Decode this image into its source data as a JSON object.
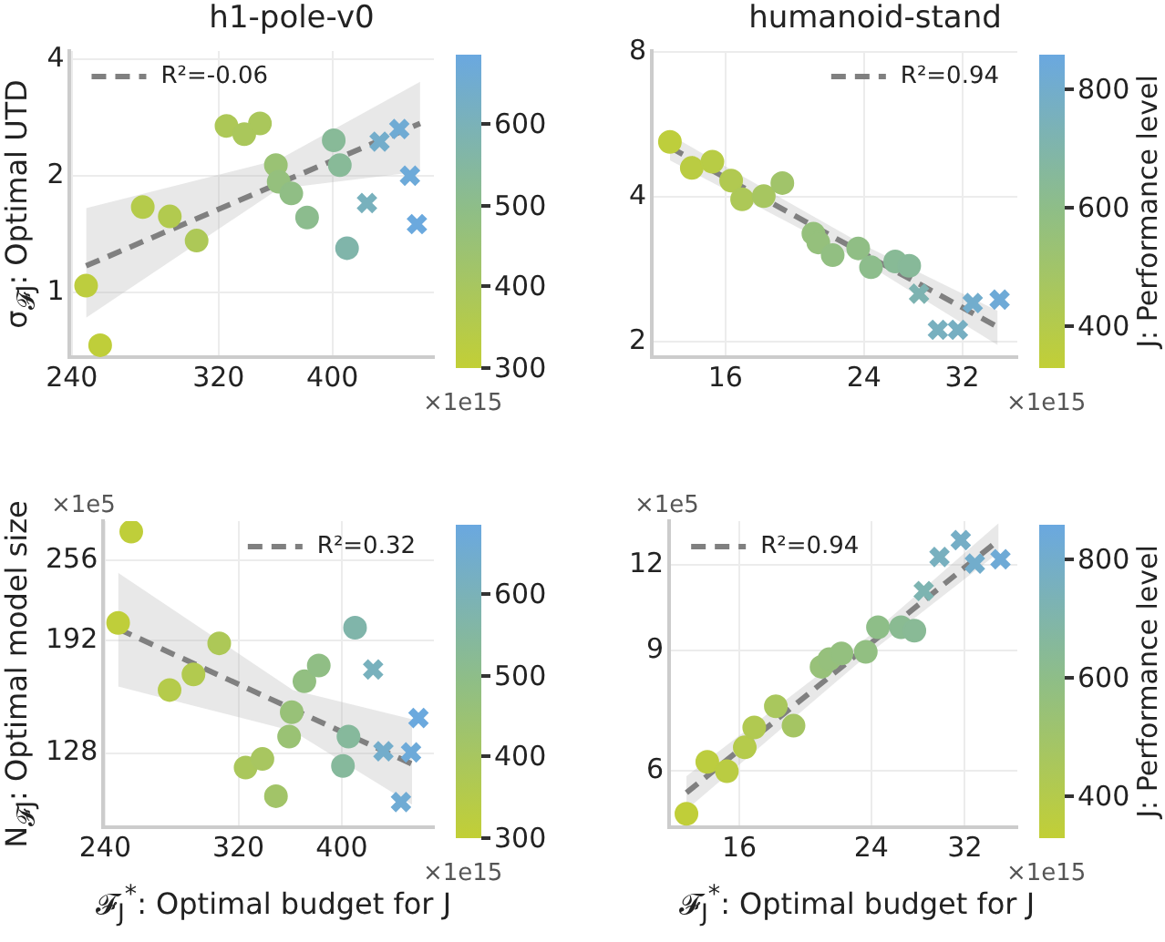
{
  "chart_data": [
    {
      "type": "scatter",
      "title": "h1-pole-v0",
      "ylabel": "σ$_{𝓕J}$: Optimal UTD",
      "xlim": [
        239,
        488
      ],
      "xticks": [
        240,
        320,
        400
      ],
      "ylim": [
        0.68,
        4.2
      ],
      "yticks": [
        1,
        2,
        4
      ],
      "log": "xy",
      "grid": true,
      "legend": "top left",
      "clim": [
        300,
        685
      ],
      "cticks": [
        300,
        400,
        500,
        600
      ],
      "annotations": [
        "×1e15"
      ],
      "series": [
        {
          "marker": "circle",
          "x": [
            246.8,
            253.7,
            275.8,
            290.8,
            306.5,
            325,
            336.5,
            347,
            358,
            360,
            369,
            380.6,
            401,
            405.8,
            411.6
          ],
          "values": [
            1.04,
            0.73,
            1.66,
            1.57,
            1.36,
            2.69,
            2.56,
            2.73,
            2.13,
            1.93,
            1.8,
            1.56,
            2.47,
            2.13,
            1.3
          ],
          "cvalues": [
            320,
            310,
            350,
            360,
            380,
            380,
            390,
            390,
            450,
            470,
            490,
            510,
            530,
            530,
            570
          ],
          "colors": [
            "#bdcd3e",
            "#bfce3a",
            "#b5cb4b",
            "#b2ca4f",
            "#adc857",
            "#adc857",
            "#aac75b",
            "#aac75b",
            "#9ac274",
            "#95c07d",
            "#90be85",
            "#8cbc8e",
            "#88ba98",
            "#88ba98",
            "#80b5aa"
          ]
        },
        {
          "marker": "cross",
          "x": [
            428,
            438.7,
            456,
            465.6,
            472
          ],
          "values": [
            1.7,
            2.45,
            2.64,
            2.0,
            1.5
          ],
          "cvalues": [
            610,
            640,
            660,
            670,
            680
          ],
          "colors": [
            "#78b1bd",
            "#73adcb",
            "#6fabd4",
            "#6daad9",
            "#6ba9de"
          ]
        },
        {
          "type": "line",
          "name": "R²=-0.06",
          "color": "#808080",
          "line_style": "dashed",
          "marker": "none",
          "x": [
            246.8,
            360,
            475
          ],
          "values": [
            1.17,
            1.91,
            2.73
          ],
          "lower": [
            0.86,
            1.85,
            2.05
          ],
          "upper": [
            1.65,
            2.2,
            3.5
          ]
        }
      ]
    },
    {
      "type": "scatter",
      "title": "humanoid-stand",
      "clabel": "J: Performance level",
      "xlim": [
        12.9,
        37.6
      ],
      "xticks": [
        16,
        24,
        32
      ],
      "ylim": [
        1.86,
        8.05
      ],
      "yticks": [
        2,
        4,
        8
      ],
      "log": "xy",
      "grid": true,
      "legend": "top right",
      "clim": [
        330,
        857
      ],
      "cticks": [
        400,
        600,
        800
      ],
      "annotations": [
        "×1e15"
      ],
      "series": [
        {
          "marker": "circle",
          "x": [
            13.6,
            14.5,
            15.4,
            16.27,
            16.8,
            17.9,
            18.9,
            20.7,
            21.0,
            21.9,
            23.6,
            24.5,
            26.3,
            27.4
          ],
          "values": [
            5.21,
            4.6,
            4.74,
            4.33,
            3.96,
            4.02,
            4.28,
            3.36,
            3.22,
            3.03,
            3.13,
            2.86,
            2.94,
            2.88
          ],
          "cvalues": [
            350,
            370,
            380,
            420,
            440,
            470,
            500,
            560,
            560,
            580,
            590,
            610,
            640,
            650
          ],
          "colors": [
            "#bece3c",
            "#bacc42",
            "#b8cc45",
            "#b1c951",
            "#adc857",
            "#a7c660",
            "#a1c46a",
            "#95c07c",
            "#95c07c",
            "#92bf82",
            "#90be85",
            "#8dbd8c",
            "#88ba96",
            "#87b999"
          ]
        },
        {
          "marker": "cross",
          "x": [
            28.2,
            29.8,
            31.6,
            33.0,
            35.7
          ],
          "values": [
            2.52,
            2.12,
            2.12,
            2.41,
            2.45
          ],
          "cvalues": [
            720,
            760,
            770,
            800,
            830
          ],
          "colors": [
            "#7db3b1",
            "#78b0bf",
            "#76afc2",
            "#72adcd",
            "#6eaad7"
          ]
        },
        {
          "type": "line",
          "name": "R²=0.94",
          "color": "#808080",
          "line_style": "dashed",
          "marker": "none",
          "x": [
            13.6,
            24,
            35.5
          ],
          "values": [
            5.08,
            3.05,
            2.15
          ],
          "lower": [
            4.77,
            2.93,
            1.97
          ],
          "upper": [
            5.39,
            3.18,
            2.32
          ]
        }
      ]
    },
    {
      "type": "scatter",
      "ylabel": "N$_{𝓕J}$: Optimal model size",
      "xlabel": "𝓕$_{J}$$^{*}$: Optimal budget for J",
      "xlim": [
        239,
        488
      ],
      "xticks": [
        240,
        320,
        400
      ],
      "ylim": [
        98,
        295
      ],
      "yticks": [
        128,
        192,
        256
      ],
      "log": "xy",
      "grid": true,
      "legend": "top right",
      "clim": [
        300,
        685
      ],
      "cticks": [
        300,
        400,
        500,
        600
      ],
      "annotations": [
        "×1e5",
        "×1e15"
      ],
      "series": [
        {
          "marker": "circle",
          "x": [
            253.9,
            246.8,
            275.8,
            290.4,
            307,
            325,
            337,
            347,
            357,
            359,
            369,
            380.6,
            401,
            405.8,
            411.6
          ],
          "values": [
            284,
            204.5,
            160.6,
            169.9,
            190,
            121.5,
            125.3,
            109.6,
            135.8,
            148.3,
            165.7,
            175.4,
            122.2,
            135.8,
            201
          ],
          "cvalues": [
            310,
            310,
            350,
            360,
            380,
            390,
            400,
            420,
            450,
            460,
            480,
            490,
            540,
            540,
            570
          ],
          "colors": [
            "#bfce3a",
            "#bfce3a",
            "#b5cb4b",
            "#b2ca4f",
            "#adc857",
            "#aac75b",
            "#a8c660",
            "#a2c468",
            "#9ac274",
            "#98c178",
            "#92bf81",
            "#90be85",
            "#86b99c",
            "#86b99c",
            "#80b5aa"
          ]
        },
        {
          "marker": "cross",
          "x": [
            428,
            437.6,
            454.5,
            464.5,
            472
          ],
          "values": [
            172.9,
            128.8,
            107.3,
            128.3,
            145.2
          ],
          "cvalues": [
            610,
            640,
            660,
            670,
            680
          ],
          "colors": [
            "#78b1bd",
            "#73adcb",
            "#6fabd4",
            "#6daad9",
            "#6ba9de"
          ]
        },
        {
          "type": "line",
          "name": "R²=0.32",
          "color": "#808080",
          "line_style": "dashed",
          "marker": "none",
          "x": [
            246.8,
            360,
            465.6
          ],
          "values": [
            200.2,
            149.8,
            123
          ],
          "lower": [
            162.6,
            138.5,
            106.3
          ],
          "upper": [
            245,
            160.6,
            144.5
          ]
        }
      ]
    },
    {
      "type": "scatter",
      "xlabel": "𝓕$_{J}$$^{*}$: Optimal budget for J",
      "clabel": "J: Performance level",
      "xlim": [
        12.9,
        37.6
      ],
      "xticks": [
        16,
        24,
        32
      ],
      "ylim": [
        4.97,
        13.9
      ],
      "yticks": [
        6,
        9,
        12
      ],
      "log": "xy",
      "grid": true,
      "legend": "top left",
      "clim": [
        330,
        858
      ],
      "cticks": [
        400,
        600,
        800
      ],
      "annotations": [
        "×1e5",
        "×1e15"
      ],
      "series": [
        {
          "marker": "circle",
          "x": [
            13.6,
            14.5,
            15.4,
            16.27,
            16.75,
            17.9,
            18.9,
            20.6,
            21.1,
            21.9,
            23.6,
            24.5,
            26.3,
            27.4
          ],
          "values": [
            5.2,
            6.19,
            6.0,
            6.5,
            6.95,
            7.46,
            6.99,
            8.52,
            8.74,
            8.91,
            8.96,
            9.73,
            9.73,
            9.62
          ],
          "cvalues": [
            340,
            360,
            370,
            400,
            420,
            460,
            480,
            550,
            560,
            570,
            580,
            600,
            630,
            640
          ],
          "colors": [
            "#c0ce39",
            "#bccd3f",
            "#bacc42",
            "#b5cb4b",
            "#b1c951",
            "#a9c75d",
            "#a5c563",
            "#98c179",
            "#96c07c",
            "#94c07f",
            "#92bf82",
            "#8ebe88",
            "#8abb92",
            "#89ba96"
          ]
        },
        {
          "marker": "cross",
          "x": [
            28.2,
            29.6,
            31.6,
            33.0,
            35.7
          ],
          "values": [
            10.99,
            12.32,
            13.04,
            12.05,
            12.23
          ],
          "cvalues": [
            720,
            760,
            780,
            800,
            830
          ],
          "colors": [
            "#7db4b1",
            "#78b0bf",
            "#75aec6",
            "#72adcc",
            "#6eaad6"
          ]
        },
        {
          "type": "line",
          "name": "R²=0.94",
          "color": "#808080",
          "line_style": "dashed",
          "marker": "none",
          "x": [
            13.6,
            24,
            35.5
          ],
          "values": [
            5.58,
            9.23,
            13.04
          ],
          "lower": [
            5.27,
            8.96,
            12.51
          ],
          "upper": [
            5.9,
            9.5,
            13.8
          ]
        }
      ]
    }
  ]
}
